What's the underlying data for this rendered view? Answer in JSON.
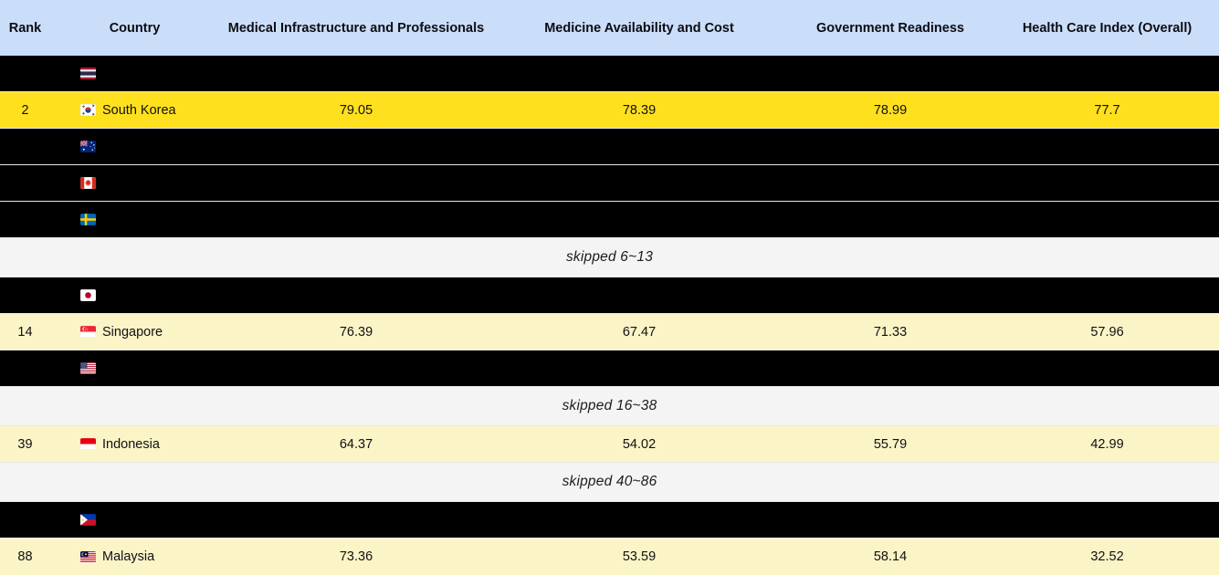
{
  "chart_data": {
    "type": "table",
    "columns": [
      "Rank",
      "Country",
      "Medical Infrastructure and Professionals",
      "Medicine Availability and Cost",
      "Government Readiness",
      "Health Care Index (Overall)"
    ],
    "rows": [
      {
        "style": "redacted",
        "flag": "TH",
        "flag_icon": "thailand-flag-icon"
      },
      {
        "style": "highlighted",
        "rank": "2",
        "flag": "KR",
        "flag_icon": "south-korea-flag-icon",
        "country": "South Korea",
        "values": [
          "79.05",
          "78.39",
          "78.99",
          "77.7"
        ]
      },
      {
        "style": "redacted",
        "flag": "AU",
        "flag_icon": "australia-flag-icon"
      },
      {
        "style": "redacted",
        "flag": "CA",
        "flag_icon": "canada-flag-icon"
      },
      {
        "style": "redacted",
        "flag": "SE",
        "flag_icon": "sweden-flag-icon"
      },
      {
        "style": "skipped",
        "label": "skipped 6~13"
      },
      {
        "style": "redacted",
        "flag": "JP",
        "flag_icon": "japan-flag-icon"
      },
      {
        "style": "tinted",
        "rank": "14",
        "flag": "SG",
        "flag_icon": "singapore-flag-icon",
        "country": "Singapore",
        "values": [
          "76.39",
          "67.47",
          "71.33",
          "57.96"
        ]
      },
      {
        "style": "redacted",
        "flag": "US",
        "flag_icon": "united-states-flag-icon"
      },
      {
        "style": "skipped",
        "label": "skipped 16~38"
      },
      {
        "style": "tinted",
        "rank": "39",
        "flag": "ID",
        "flag_icon": "indonesia-flag-icon",
        "country": "Indonesia",
        "values": [
          "64.37",
          "54.02",
          "55.79",
          "42.99"
        ]
      },
      {
        "style": "skipped",
        "label": "skipped 40~86"
      },
      {
        "style": "redacted",
        "flag": "PH",
        "flag_icon": "philippines-flag-icon"
      },
      {
        "style": "tinted",
        "rank": "88",
        "flag": "MY",
        "flag_icon": "malaysia-flag-icon",
        "country": "Malaysia",
        "values": [
          "73.36",
          "53.59",
          "58.14",
          "32.52"
        ]
      }
    ]
  },
  "colors": {
    "header_bg": "#CADEF9",
    "highlight_row_bg": "#FFE01F",
    "tinted_row_bg": "#FBF4C6",
    "redacted_row_bg": "#000000",
    "skipped_row_bg": "#F4F4F4",
    "row_divider": "#E8E8E8",
    "text": "#101014"
  }
}
